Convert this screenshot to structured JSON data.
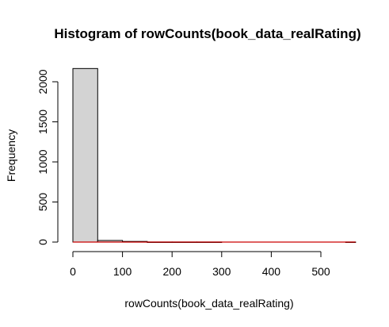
{
  "chart_data": {
    "type": "bar",
    "title": "Histogram of rowCounts(book_data_realRating)",
    "xlabel": "rowCounts(book_data_realRating)",
    "ylabel": "Frequency",
    "bins": [
      {
        "from": 0,
        "to": 50,
        "count": 2165
      },
      {
        "from": 50,
        "to": 100,
        "count": 20
      },
      {
        "from": 100,
        "to": 150,
        "count": 8
      },
      {
        "from": 150,
        "to": 200,
        "count": 1
      },
      {
        "from": 200,
        "to": 250,
        "count": 1
      },
      {
        "from": 250,
        "to": 300,
        "count": 1
      },
      {
        "from": 300,
        "to": 350,
        "count": 0
      },
      {
        "from": 350,
        "to": 400,
        "count": 0
      },
      {
        "from": 400,
        "to": 450,
        "count": 0
      },
      {
        "from": 450,
        "to": 500,
        "count": 0
      },
      {
        "from": 500,
        "to": 550,
        "count": 0
      },
      {
        "from": 550,
        "to": 570,
        "count": 1
      }
    ],
    "xlim": [
      0,
      570
    ],
    "ylim": [
      0,
      2165
    ],
    "x_ticks": [
      0,
      100,
      200,
      300,
      400,
      500
    ],
    "y_ticks": [
      0,
      500,
      1000,
      1500,
      2000
    ],
    "grid": false,
    "bar_fill": "#d3d3d3",
    "bar_stroke": "#000000",
    "reference_line": {
      "y": 0,
      "color": "#cc0000"
    }
  }
}
